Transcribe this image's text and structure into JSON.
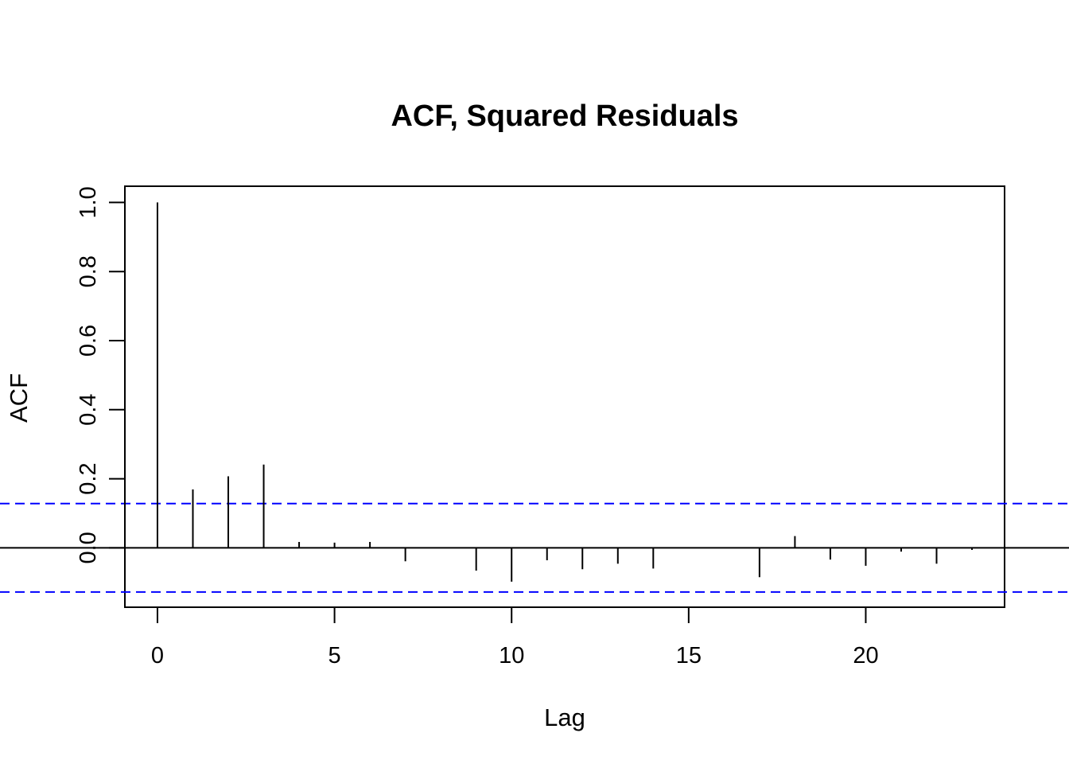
{
  "chart_data": {
    "type": "bar",
    "title": "ACF, Squared Residuals",
    "xlabel": "Lag",
    "ylabel": "ACF",
    "xlim": [
      -0.92,
      23.92
    ],
    "ylim": [
      -0.172,
      1.047
    ],
    "x_ticks": [
      0,
      5,
      10,
      15,
      20
    ],
    "x_tick_labels": [
      "0",
      "5",
      "10",
      "15",
      "20"
    ],
    "y_ticks": [
      0.0,
      0.2,
      0.4,
      0.6,
      0.8,
      1.0
    ],
    "y_tick_labels": [
      "0.0",
      "0.2",
      "0.4",
      "0.6",
      "0.8",
      "1.0"
    ],
    "lags": [
      0,
      1,
      2,
      3,
      4,
      5,
      6,
      7,
      8,
      9,
      10,
      11,
      12,
      13,
      14,
      15,
      16,
      17,
      18,
      19,
      20,
      21,
      22,
      23
    ],
    "values": [
      1.0,
      0.169,
      0.207,
      0.241,
      0.017,
      0.015,
      0.017,
      -0.039,
      0.002,
      -0.066,
      -0.098,
      -0.036,
      -0.062,
      -0.046,
      -0.06,
      0.0,
      0.002,
      -0.085,
      0.034,
      -0.034,
      -0.052,
      -0.011,
      -0.046,
      -0.006
    ],
    "confidence_bound": 0.128,
    "bar_color": "#000000",
    "ci_color": "#0000FF",
    "grid": false
  }
}
